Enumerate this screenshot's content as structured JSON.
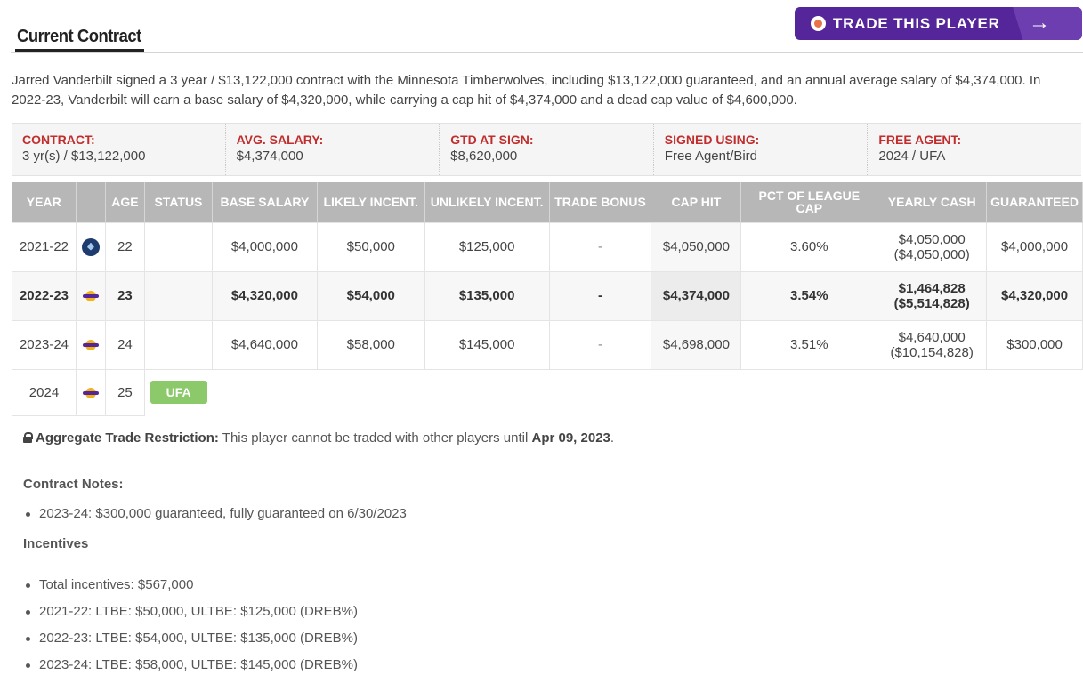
{
  "header": {
    "title": "Current Contract",
    "trade_button_label": "TRADE THIS PLAYER"
  },
  "summary": "Jarred Vanderbilt signed a 3 year / $13,122,000 contract with the Minnesota Timberwolves, including $13,122,000 guaranteed, and an annual average salary of $4,374,000. In 2022-23, Vanderbilt will earn a base salary of $4,320,000, while carrying a cap hit of $4,374,000 and a dead cap value of $4,600,000.",
  "info": [
    {
      "label": "CONTRACT:",
      "value": "3 yr(s) / $13,122,000"
    },
    {
      "label": "AVG. SALARY:",
      "value": "$4,374,000"
    },
    {
      "label": "GTD AT SIGN:",
      "value": "$8,620,000"
    },
    {
      "label": "SIGNED USING:",
      "value": "Free Agent/Bird"
    },
    {
      "label": "FREE AGENT:",
      "value": "2024 / UFA"
    }
  ],
  "table": {
    "headers": [
      "YEAR",
      "",
      "AGE",
      "STATUS",
      "BASE SALARY",
      "LIKELY INCENT.",
      "UNLIKELY INCENT.",
      "TRADE BONUS",
      "CAP HIT",
      "PCT OF LEAGUE CAP",
      "YEARLY CASH",
      "GUARANTEED"
    ],
    "rows": [
      {
        "year": "2021-22",
        "year_a": "2021",
        "year_b": "-22",
        "team": "timberwolves-logo",
        "age": "22",
        "status": "",
        "base": "$4,000,000",
        "likely": "$50,000",
        "unlikely": "$125,000",
        "bonus": "-",
        "cap_hit": "$4,050,000",
        "pct": "3.60%",
        "cash": "$4,050,000",
        "cash_cum": "($4,050,000)",
        "guaranteed": "$4,000,000"
      },
      {
        "year": "2022-23",
        "year_a": "2022",
        "year_b": "-23",
        "team": "lakers-logo",
        "age": "23",
        "status": "",
        "base": "$4,320,000",
        "likely": "$54,000",
        "unlikely": "$135,000",
        "bonus": "-",
        "cap_hit": "$4,374,000",
        "pct": "3.54%",
        "cash": "$1,464,828",
        "cash_cum": "($5,514,828)",
        "guaranteed": "$4,320,000"
      },
      {
        "year": "2023-24",
        "year_a": "2023",
        "year_b": "-24",
        "team": "lakers-logo",
        "age": "24",
        "status": "",
        "base": "$4,640,000",
        "likely": "$58,000",
        "unlikely": "$145,000",
        "bonus": "-",
        "cap_hit": "$4,698,000",
        "pct": "3.51%",
        "cash": "$4,640,000",
        "cash_cum": "($10,154,828)",
        "guaranteed": "$300,000"
      },
      {
        "year": "2024",
        "team": "lakers-logo",
        "age": "25",
        "status": "UFA"
      }
    ]
  },
  "restriction": {
    "label": "Aggregate Trade Restriction:",
    "text": "This player cannot be traded with other players until",
    "date": "Apr 09, 2023",
    "end": "."
  },
  "notes": {
    "title": "Contract Notes:",
    "items": [
      "2023-24: $300,000 guaranteed, fully guaranteed on 6/30/2023"
    ]
  },
  "incentives": {
    "title": "Incentives",
    "items": [
      "Total incentives: $567,000",
      "2021-22: LTBE: $50,000, ULTBE: $125,000 (DREB%)",
      "2022-23: LTBE: $54,000, ULTBE: $135,000 (DREB%)",
      "2023-24: LTBE: $58,000, ULTBE: $145,000 (DREB%)"
    ]
  },
  "colors": {
    "accent_purple": "#55259a",
    "label_red": "#c12d2d",
    "ufa_green": "#8bc96a",
    "header_gray": "#b7b7b7"
  }
}
